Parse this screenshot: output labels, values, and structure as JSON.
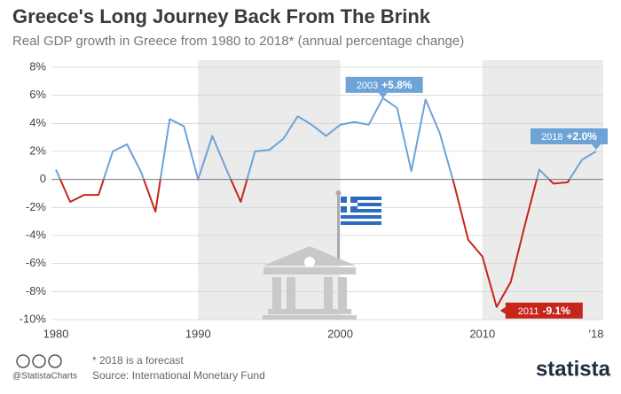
{
  "chart_data": {
    "type": "line",
    "title": "Greece's Long Journey Back From The Brink",
    "subtitle": "Real GDP growth in Greece from 1980 to 2018* (annual percentage change)",
    "x": [
      1980,
      1981,
      1982,
      1983,
      1984,
      1985,
      1986,
      1987,
      1988,
      1989,
      1990,
      1991,
      1992,
      1993,
      1994,
      1995,
      1996,
      1997,
      1998,
      1999,
      2000,
      2001,
      2002,
      2003,
      2004,
      2005,
      2006,
      2007,
      2008,
      2009,
      2010,
      2011,
      2012,
      2013,
      2014,
      2015,
      2016,
      2017,
      2018
    ],
    "series": [
      {
        "name": "Real GDP growth",
        "color": "#6ea3d8",
        "negative_color": "#c6251c",
        "values": [
          0.7,
          -1.6,
          -1.1,
          -1.1,
          2.0,
          2.5,
          0.5,
          -2.3,
          4.3,
          3.8,
          0.0,
          3.1,
          0.7,
          -1.6,
          2.0,
          2.1,
          2.9,
          4.5,
          3.9,
          3.1,
          3.9,
          4.1,
          3.9,
          5.8,
          5.1,
          0.6,
          5.7,
          3.3,
          -0.3,
          -4.3,
          -5.5,
          -9.1,
          -7.3,
          -3.2,
          0.7,
          -0.3,
          -0.2,
          1.4,
          2.0
        ],
        "value_labels": [
          null,
          null,
          null,
          null,
          null,
          null,
          null,
          null,
          null,
          null,
          null,
          null,
          null,
          null,
          null,
          null,
          null,
          null,
          null,
          null,
          null,
          null,
          null,
          "+5.8%",
          null,
          null,
          null,
          null,
          null,
          null,
          null,
          "-9.1%",
          null,
          null,
          null,
          null,
          null,
          null,
          "+2.0%"
        ]
      }
    ],
    "xlim": [
      1978,
      2018.5
    ],
    "xticks": [
      1980,
      1990,
      2000,
      2010,
      {
        "value": 2018,
        "label": "'18"
      }
    ],
    "ylim": [
      -10,
      8
    ],
    "yticks": [
      {
        "value": -10,
        "label": "-10%"
      },
      {
        "value": -8,
        "label": "-8%"
      },
      {
        "value": -6,
        "label": "-6%"
      },
      {
        "value": -4,
        "label": "-4%"
      },
      {
        "value": -2,
        "label": "-2%"
      },
      {
        "value": 0,
        "label": "0"
      },
      {
        "value": 2,
        "label": "2%"
      },
      {
        "value": 4,
        "label": "4%"
      },
      {
        "value": 6,
        "label": "6%"
      },
      {
        "value": 8,
        "label": "8%"
      }
    ],
    "grid": true,
    "shaded_x": [
      [
        1990,
        2000
      ],
      [
        2010,
        2018.5
      ]
    ],
    "footnote": "* 2018 is a forecast",
    "source": "Source: International Monetary Fund",
    "handle": "@StatistaCharts",
    "brand": "statista"
  }
}
